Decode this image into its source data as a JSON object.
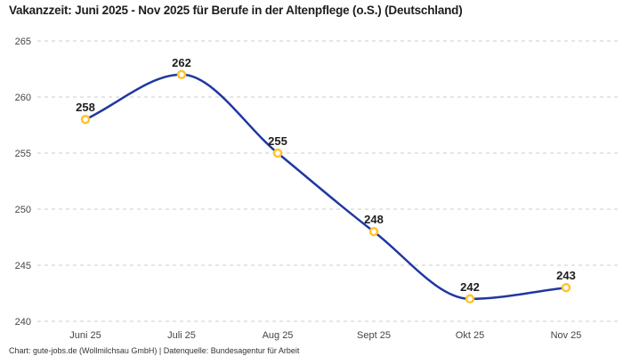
{
  "chart": {
    "title": "Vakanzzeit: Juni 2025 - Nov 2025 für Berufe in der Altenpflege (o.S.) (Deutschland)",
    "footer": "Chart: gute-jobs.de (Wollmilchsau GmbH) | Datenquelle: Bundesagentur für Arbeit"
  },
  "chart_data": {
    "type": "line",
    "title": "Vakanzzeit: Juni 2025 - Nov 2025 für Berufe in der Altenpflege (o.S.) (Deutschland)",
    "categories": [
      "Juni 25",
      "Juli 25",
      "Aug 25",
      "Sept 25",
      "Okt 25",
      "Nov 25"
    ],
    "values": [
      258,
      262,
      255,
      248,
      242,
      243
    ],
    "data_labels": [
      258,
      262,
      255,
      248,
      242,
      243
    ],
    "xlabel": "",
    "ylabel": "",
    "ylim": [
      240,
      265
    ],
    "yticks": [
      240,
      245,
      250,
      255,
      260,
      265
    ],
    "grid": "horizontal-dashed",
    "legend": "none",
    "line_color": "#1f38a0",
    "marker_stroke_color": "#ffc42d",
    "marker_fill_color": "#ffffff",
    "grid_color": "#cccccc",
    "label_color": "#1d1d1d",
    "tick_color": "#454545"
  }
}
